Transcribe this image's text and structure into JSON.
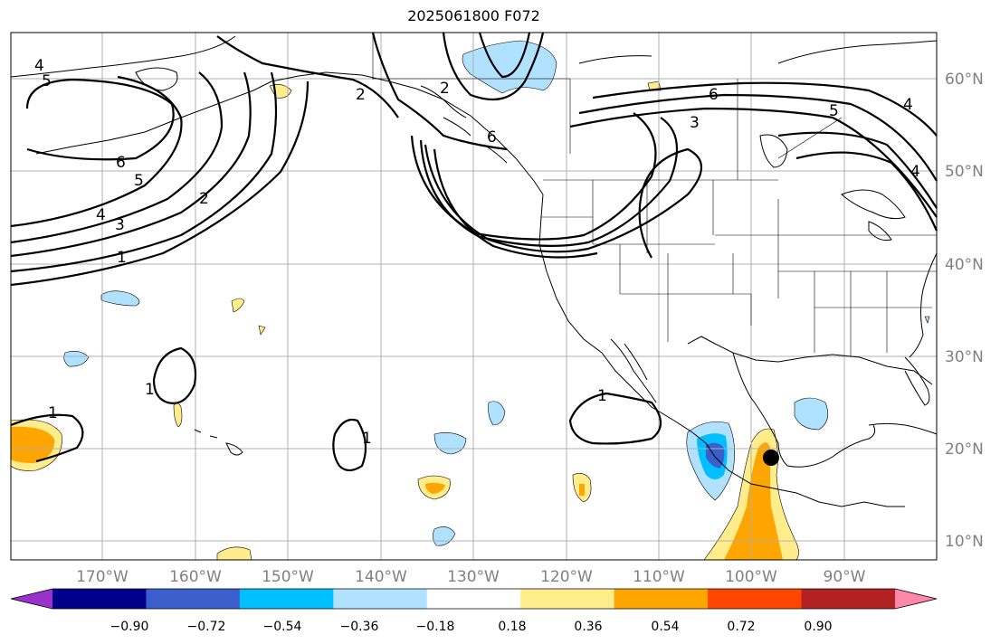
{
  "title": "2025061800 F072",
  "map": {
    "lon_labels": [
      "170°W",
      "160°W",
      "150°W",
      "140°W",
      "130°W",
      "120°W",
      "110°W",
      "100°W",
      "90°W"
    ],
    "lat_labels": [
      "60°N",
      "50°N",
      "40°N",
      "30°N",
      "20°N",
      "10°N"
    ],
    "contour_labels": [
      "4",
      "5",
      "6",
      "5",
      "4",
      "3",
      "2",
      "1",
      "2",
      "6",
      "3",
      "6",
      "5",
      "4",
      "4",
      "1",
      "1",
      "1",
      "1",
      "2"
    ],
    "marker": "black-dot"
  },
  "colorbar": {
    "tick_labels": [
      "−0.90",
      "−0.72",
      "−0.54",
      "−0.36",
      "−0.18",
      "0.18",
      "0.36",
      "0.54",
      "0.72",
      "0.90"
    ],
    "colors": [
      "#9932cc",
      "#00008b",
      "#3a5fcd",
      "#00bfff",
      "#b0e2ff",
      "#ffffff",
      "#ffec8b",
      "#ffa500",
      "#ff4500",
      "#b22222",
      "#ff88aa"
    ]
  }
}
